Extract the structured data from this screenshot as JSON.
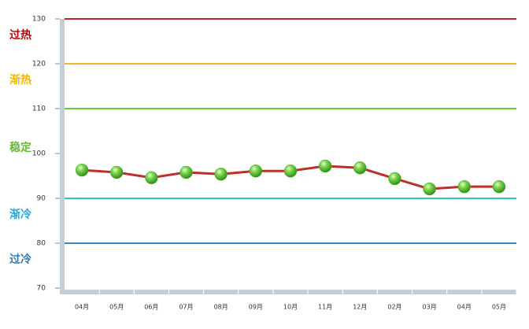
{
  "chart_data": {
    "type": "line",
    "categories": [
      "04月",
      "05月",
      "06月",
      "07月",
      "08月",
      "09月",
      "10月",
      "11月",
      "12月",
      "02月",
      "03月",
      "04月",
      "05月"
    ],
    "values": [
      96.3,
      95.8,
      94.6,
      95.8,
      95.4,
      96.1,
      96.1,
      97.2,
      96.8,
      94.4,
      92.1,
      92.6,
      92.6
    ],
    "color": "#c0302a",
    "marker_color": "#44b02a",
    "ylim": [
      70,
      130
    ],
    "yticks": [
      70,
      80,
      90,
      100,
      110,
      120,
      130
    ],
    "reference_lines": [
      {
        "value": 130,
        "color": "#b8272b"
      },
      {
        "value": 120,
        "color": "#f2b233"
      },
      {
        "value": 110,
        "color": "#66cc33"
      },
      {
        "value": 90,
        "color": "#33c4b8"
      },
      {
        "value": 80,
        "color": "#3a87c8"
      }
    ],
    "zone_labels": [
      {
        "label": "过热",
        "color": "#c00000"
      },
      {
        "label": "渐热",
        "color": "#f5b800"
      },
      {
        "label": "稳定",
        "color": "#66bb33"
      },
      {
        "label": "渐冷",
        "color": "#22aadd"
      },
      {
        "label": "过冷",
        "color": "#2a7ab8"
      }
    ]
  }
}
